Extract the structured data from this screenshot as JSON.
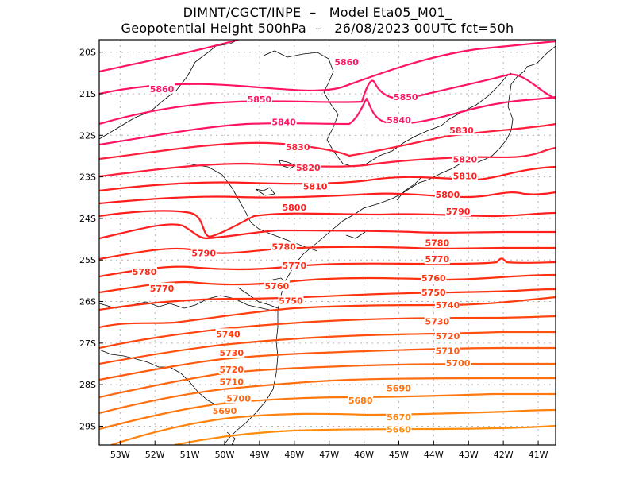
{
  "header": {
    "line1": "DIMNT/CGCT/INPE  –   Model Eta05_M01_",
    "line2": "Geopotential Height 500hPa  –   26/08/2023 00UTC fct=50h"
  },
  "map": {
    "lon_range": [
      -53.6,
      -40.5
    ],
    "lat_range": [
      -29.45,
      -19.7
    ],
    "lat_ticks": [
      {
        "value": -20,
        "label": "20S"
      },
      {
        "value": -21,
        "label": "21S"
      },
      {
        "value": -22,
        "label": "22S"
      },
      {
        "value": -23,
        "label": "23S"
      },
      {
        "value": -24,
        "label": "24S"
      },
      {
        "value": -25,
        "label": "25S"
      },
      {
        "value": -26,
        "label": "26S"
      },
      {
        "value": -27,
        "label": "27S"
      },
      {
        "value": -28,
        "label": "28S"
      },
      {
        "value": -29,
        "label": "29S"
      }
    ],
    "lon_ticks": [
      {
        "value": -53,
        "label": "53W"
      },
      {
        "value": -52,
        "label": "52W"
      },
      {
        "value": -51,
        "label": "51W"
      },
      {
        "value": -50,
        "label": "50W"
      },
      {
        "value": -49,
        "label": "49W"
      },
      {
        "value": -48,
        "label": "48W"
      },
      {
        "value": -47,
        "label": "47W"
      },
      {
        "value": -46,
        "label": "46W"
      },
      {
        "value": -45,
        "label": "45W"
      },
      {
        "value": -44,
        "label": "44W"
      },
      {
        "value": -43,
        "label": "43W"
      },
      {
        "value": -42,
        "label": "42W"
      },
      {
        "value": -41,
        "label": "41W"
      }
    ],
    "contour_interval_gpm": 10,
    "contour_labels": [
      {
        "text": "5860",
        "lon": -46.5,
        "lat": -20.25,
        "color": "#ff1463"
      },
      {
        "text": "5860",
        "lon": -51.8,
        "lat": -20.9,
        "color": "#ff1463"
      },
      {
        "text": "5850",
        "lon": -49.0,
        "lat": -21.15,
        "color": "#ff1463"
      },
      {
        "text": "5850",
        "lon": -44.8,
        "lat": -21.1,
        "color": "#ff1463"
      },
      {
        "text": "5840",
        "lon": -48.3,
        "lat": -21.7,
        "color": "#ff1463"
      },
      {
        "text": "5840",
        "lon": -45.0,
        "lat": -21.65,
        "color": "#ff1463"
      },
      {
        "text": "5830",
        "lon": -47.9,
        "lat": -22.3,
        "color": "#ff1e3c"
      },
      {
        "text": "5830",
        "lon": -43.2,
        "lat": -21.9,
        "color": "#ff1e3c"
      },
      {
        "text": "5820",
        "lon": -47.6,
        "lat": -22.8,
        "color": "#ff1e3c"
      },
      {
        "text": "5820",
        "lon": -43.1,
        "lat": -22.6,
        "color": "#ff1e3c"
      },
      {
        "text": "5810",
        "lon": -47.4,
        "lat": -23.25,
        "color": "#ff1e1e"
      },
      {
        "text": "5810",
        "lon": -43.1,
        "lat": -23.0,
        "color": "#ff1e1e"
      },
      {
        "text": "5800",
        "lon": -48.0,
        "lat": -23.75,
        "color": "#ff1e1e"
      },
      {
        "text": "5800",
        "lon": -43.6,
        "lat": -23.45,
        "color": "#ff1e1e"
      },
      {
        "text": "5790",
        "lon": -43.3,
        "lat": -23.85,
        "color": "#ff1e1e"
      },
      {
        "text": "5790",
        "lon": -50.6,
        "lat": -24.85,
        "color": "#ff1e1e"
      },
      {
        "text": "5780",
        "lon": -48.3,
        "lat": -24.7,
        "color": "#ff2814"
      },
      {
        "text": "5780",
        "lon": -43.9,
        "lat": -24.6,
        "color": "#ff2814"
      },
      {
        "text": "5780",
        "lon": -52.3,
        "lat": -25.3,
        "color": "#ff2814"
      },
      {
        "text": "5770",
        "lon": -48.0,
        "lat": -25.15,
        "color": "#ff2814"
      },
      {
        "text": "5770",
        "lon": -43.9,
        "lat": -25.0,
        "color": "#ff2814"
      },
      {
        "text": "5770",
        "lon": -51.8,
        "lat": -25.7,
        "color": "#ff2814"
      },
      {
        "text": "5760",
        "lon": -48.5,
        "lat": -25.65,
        "color": "#ff3210"
      },
      {
        "text": "5760",
        "lon": -44.0,
        "lat": -25.45,
        "color": "#ff3210"
      },
      {
        "text": "5750",
        "lon": -48.1,
        "lat": -26.0,
        "color": "#ff3210"
      },
      {
        "text": "5750",
        "lon": -44.0,
        "lat": -25.8,
        "color": "#ff3210"
      },
      {
        "text": "5740",
        "lon": -43.6,
        "lat": -26.1,
        "color": "#ff3c0f"
      },
      {
        "text": "5740",
        "lon": -49.9,
        "lat": -26.8,
        "color": "#ff3c0f"
      },
      {
        "text": "5730",
        "lon": -43.9,
        "lat": -26.5,
        "color": "#ff460f"
      },
      {
        "text": "5730",
        "lon": -49.8,
        "lat": -27.25,
        "color": "#ff460f"
      },
      {
        "text": "5720",
        "lon": -43.6,
        "lat": -26.85,
        "color": "#ff500f"
      },
      {
        "text": "5720",
        "lon": -49.8,
        "lat": -27.65,
        "color": "#ff500f"
      },
      {
        "text": "5710",
        "lon": -43.6,
        "lat": -27.2,
        "color": "#ff5a0f"
      },
      {
        "text": "5710",
        "lon": -49.8,
        "lat": -27.95,
        "color": "#ff5a0f"
      },
      {
        "text": "5700",
        "lon": -43.3,
        "lat": -27.5,
        "color": "#ff640f"
      },
      {
        "text": "5700",
        "lon": -49.6,
        "lat": -28.35,
        "color": "#ff640f"
      },
      {
        "text": "5690",
        "lon": -45.0,
        "lat": -28.1,
        "color": "#ff6e0f"
      },
      {
        "text": "5690",
        "lon": -50.0,
        "lat": -28.65,
        "color": "#ff6e0f"
      },
      {
        "text": "5680",
        "lon": -46.1,
        "lat": -28.4,
        "color": "#ff780f"
      },
      {
        "text": "5670",
        "lon": -45.0,
        "lat": -28.8,
        "color": "#ff820f"
      },
      {
        "text": "5660",
        "lon": -45.0,
        "lat": -29.1,
        "color": "#ff8c0f"
      }
    ]
  },
  "colors": {
    "grid": "#b4b4b4",
    "coast": "#000000",
    "frame": "#000000"
  }
}
